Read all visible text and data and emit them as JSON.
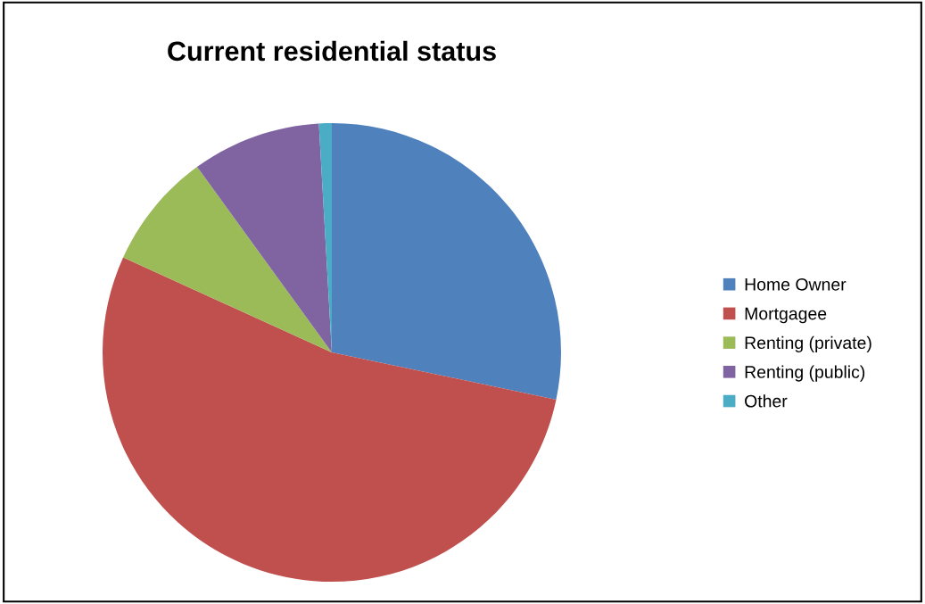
{
  "chart_data": {
    "type": "pie",
    "title": "Current residential status",
    "categories": [
      "Home Owner",
      "Mortgagee",
      "Renting (private)",
      "Renting (public)",
      "Other"
    ],
    "values": [
      28.3,
      53.5,
      8.2,
      9.1,
      0.9
    ],
    "colors": [
      "#4f81bd",
      "#c0504d",
      "#9bbb59",
      "#8064a2",
      "#4bacc6"
    ],
    "legend": "right"
  }
}
